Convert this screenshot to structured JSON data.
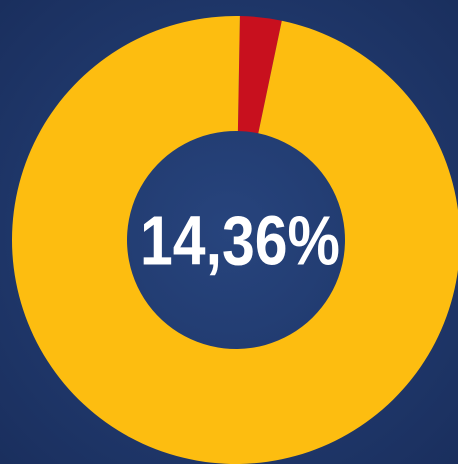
{
  "chart_data": {
    "type": "donut",
    "values": [
      3,
      97
    ],
    "colors": [
      "#c8101e",
      "#fdbd10"
    ],
    "center_label": "14,36%"
  }
}
